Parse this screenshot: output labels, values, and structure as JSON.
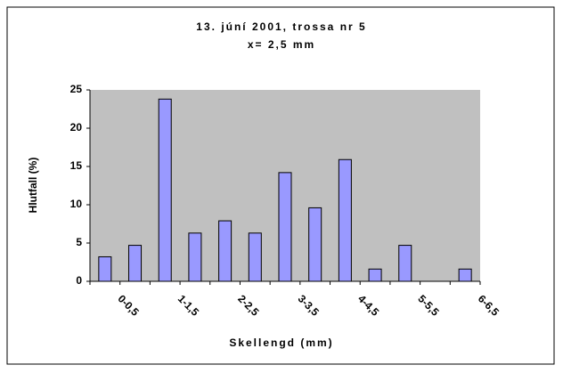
{
  "chart_data": {
    "type": "bar",
    "title": "13. júní 2001, trossa nr 5",
    "subtitle": "x= 2,5 mm",
    "x_label": "Skellengd (mm)",
    "y_label": "Hlutfall (%)",
    "categories": [
      "0-0,5",
      null,
      "1-1,5",
      null,
      "2-2,5",
      null,
      "3-3,5",
      null,
      "4-4,5",
      null,
      "5-5,5",
      null,
      "6-6,5"
    ],
    "values": [
      3.2,
      4.7,
      23.8,
      6.3,
      7.9,
      6.3,
      14.2,
      9.6,
      15.9,
      1.6,
      4.7,
      0,
      1.6
    ],
    "color": "#9999ff",
    "ylim": [
      0,
      25
    ],
    "yticks": [
      0,
      5,
      10,
      15,
      20,
      25
    ],
    "grid": false
  }
}
